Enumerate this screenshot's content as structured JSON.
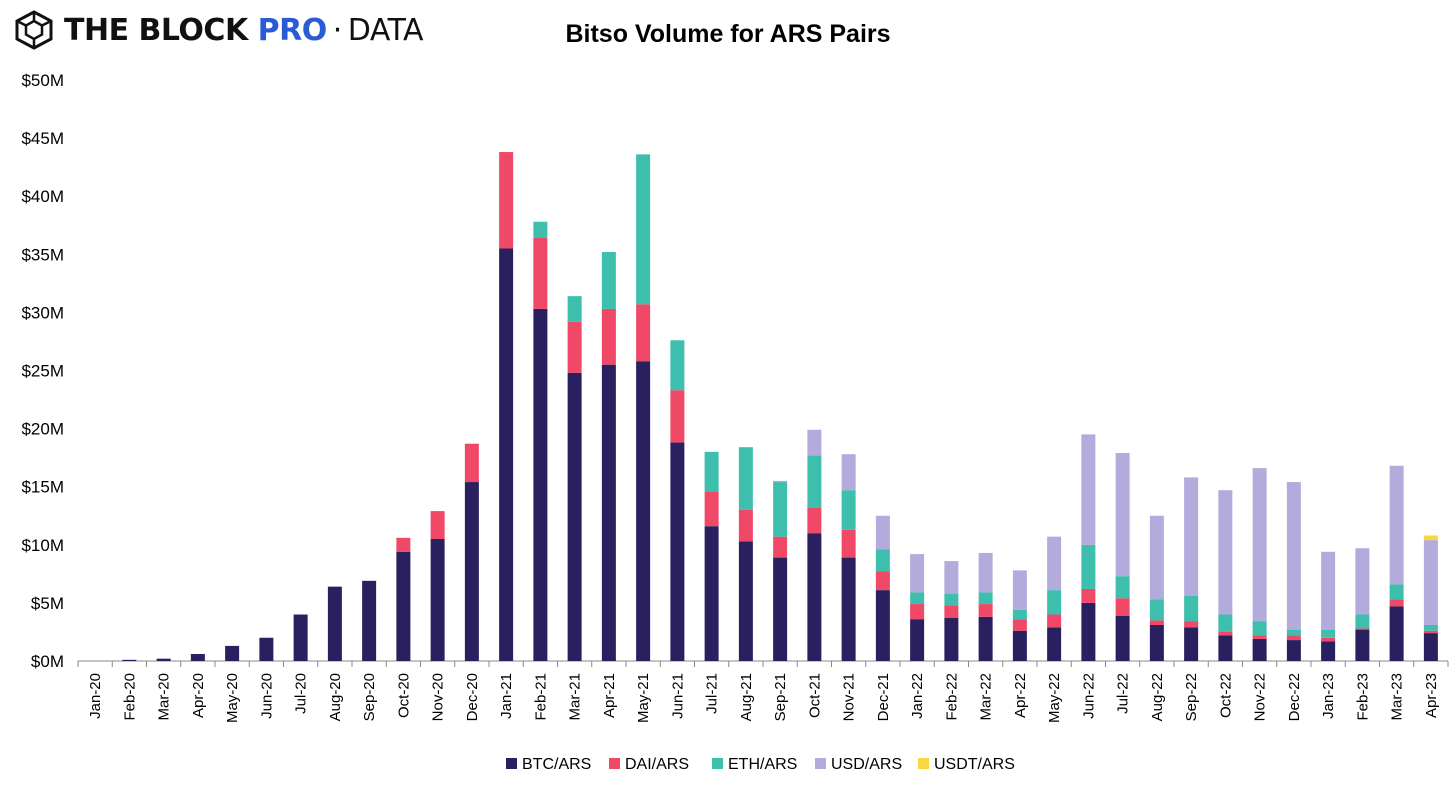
{
  "brand": {
    "logo_icon": "cube-icon",
    "name_prefix": "THE BLOCK",
    "name_highlight": "PRO",
    "separator": "·",
    "name_suffix": "DATA",
    "highlight_color": "#2a5bd7"
  },
  "chart_data": {
    "type": "bar",
    "stacked": true,
    "title": "Bitso Volume for ARS Pairs",
    "xlabel": "",
    "ylabel": "",
    "ylim": [
      0,
      50
    ],
    "ytick_labels": [
      "$0M",
      "$5M",
      "$10M",
      "$15M",
      "$20M",
      "$25M",
      "$30M",
      "$35M",
      "$40M",
      "$45M",
      "$50M"
    ],
    "unit": "$M",
    "grid": false,
    "legend_position": "bottom",
    "categories": [
      "Jan-20",
      "Feb-20",
      "Mar-20",
      "Apr-20",
      "May-20",
      "Jun-20",
      "Jul-20",
      "Aug-20",
      "Sep-20",
      "Oct-20",
      "Nov-20",
      "Dec-20",
      "Jan-21",
      "Feb-21",
      "Mar-21",
      "Apr-21",
      "May-21",
      "Jun-21",
      "Jul-21",
      "Aug-21",
      "Sep-21",
      "Oct-21",
      "Nov-21",
      "Dec-21",
      "Jan-22",
      "Feb-22",
      "Mar-22",
      "Apr-22",
      "May-22",
      "Jun-22",
      "Jul-22",
      "Aug-22",
      "Sep-22",
      "Oct-22",
      "Nov-22",
      "Dec-22",
      "Jan-23",
      "Feb-23",
      "Mar-23",
      "Apr-23"
    ],
    "series": [
      {
        "name": "BTC/ARS",
        "color": "#29215f",
        "values": [
          0,
          0.1,
          0.2,
          0.6,
          1.3,
          2.0,
          4.0,
          6.4,
          6.9,
          9.4,
          10.5,
          15.4,
          35.5,
          30.3,
          24.8,
          25.5,
          25.8,
          18.8,
          11.6,
          10.3,
          8.9,
          11.0,
          8.9,
          6.1,
          3.6,
          3.7,
          3.8,
          2.6,
          2.9,
          5.0,
          3.9,
          3.1,
          2.9,
          2.2,
          1.9,
          1.8,
          1.7,
          2.7,
          4.7,
          2.4
        ]
      },
      {
        "name": "DAI/ARS",
        "color": "#f04867",
        "values": [
          0,
          0,
          0,
          0,
          0,
          0,
          0,
          0,
          0,
          1.2,
          2.4,
          3.3,
          8.3,
          6.1,
          4.4,
          4.8,
          4.9,
          4.5,
          3.0,
          2.7,
          1.8,
          2.2,
          2.4,
          1.6,
          1.3,
          1.1,
          1.1,
          1.0,
          1.1,
          1.2,
          1.5,
          0.4,
          0.5,
          0.3,
          0.3,
          0.4,
          0.3,
          0.1,
          0.6,
          0.2
        ]
      },
      {
        "name": "ETH/ARS",
        "color": "#3ebfad",
        "values": [
          0,
          0,
          0,
          0,
          0,
          0,
          0,
          0,
          0,
          0,
          0,
          0,
          0,
          1.4,
          2.2,
          4.9,
          12.9,
          4.3,
          3.4,
          5.4,
          4.7,
          4.5,
          3.4,
          1.9,
          1.0,
          1.0,
          1.0,
          0.8,
          2.1,
          3.8,
          1.9,
          1.8,
          2.2,
          1.5,
          1.2,
          0.5,
          0.7,
          1.2,
          1.3,
          0.5
        ]
      },
      {
        "name": "USD/ARS",
        "color": "#b3abdc",
        "values": [
          0,
          0,
          0,
          0,
          0,
          0,
          0,
          0,
          0,
          0,
          0,
          0,
          0,
          0,
          0,
          0,
          0,
          0,
          0,
          0,
          0.1,
          2.2,
          3.1,
          2.9,
          3.3,
          2.8,
          3.4,
          3.4,
          4.6,
          9.5,
          10.6,
          7.2,
          10.2,
          10.7,
          13.2,
          12.7,
          6.7,
          5.7,
          10.2,
          7.3
        ]
      },
      {
        "name": "USDT/ARS",
        "color": "#f9d743",
        "values": [
          0,
          0,
          0,
          0,
          0,
          0,
          0,
          0,
          0,
          0,
          0,
          0,
          0,
          0,
          0,
          0,
          0,
          0,
          0,
          0,
          0,
          0,
          0,
          0,
          0,
          0,
          0,
          0,
          0,
          0,
          0,
          0,
          0,
          0,
          0,
          0,
          0,
          0,
          0,
          0.4
        ]
      }
    ]
  }
}
